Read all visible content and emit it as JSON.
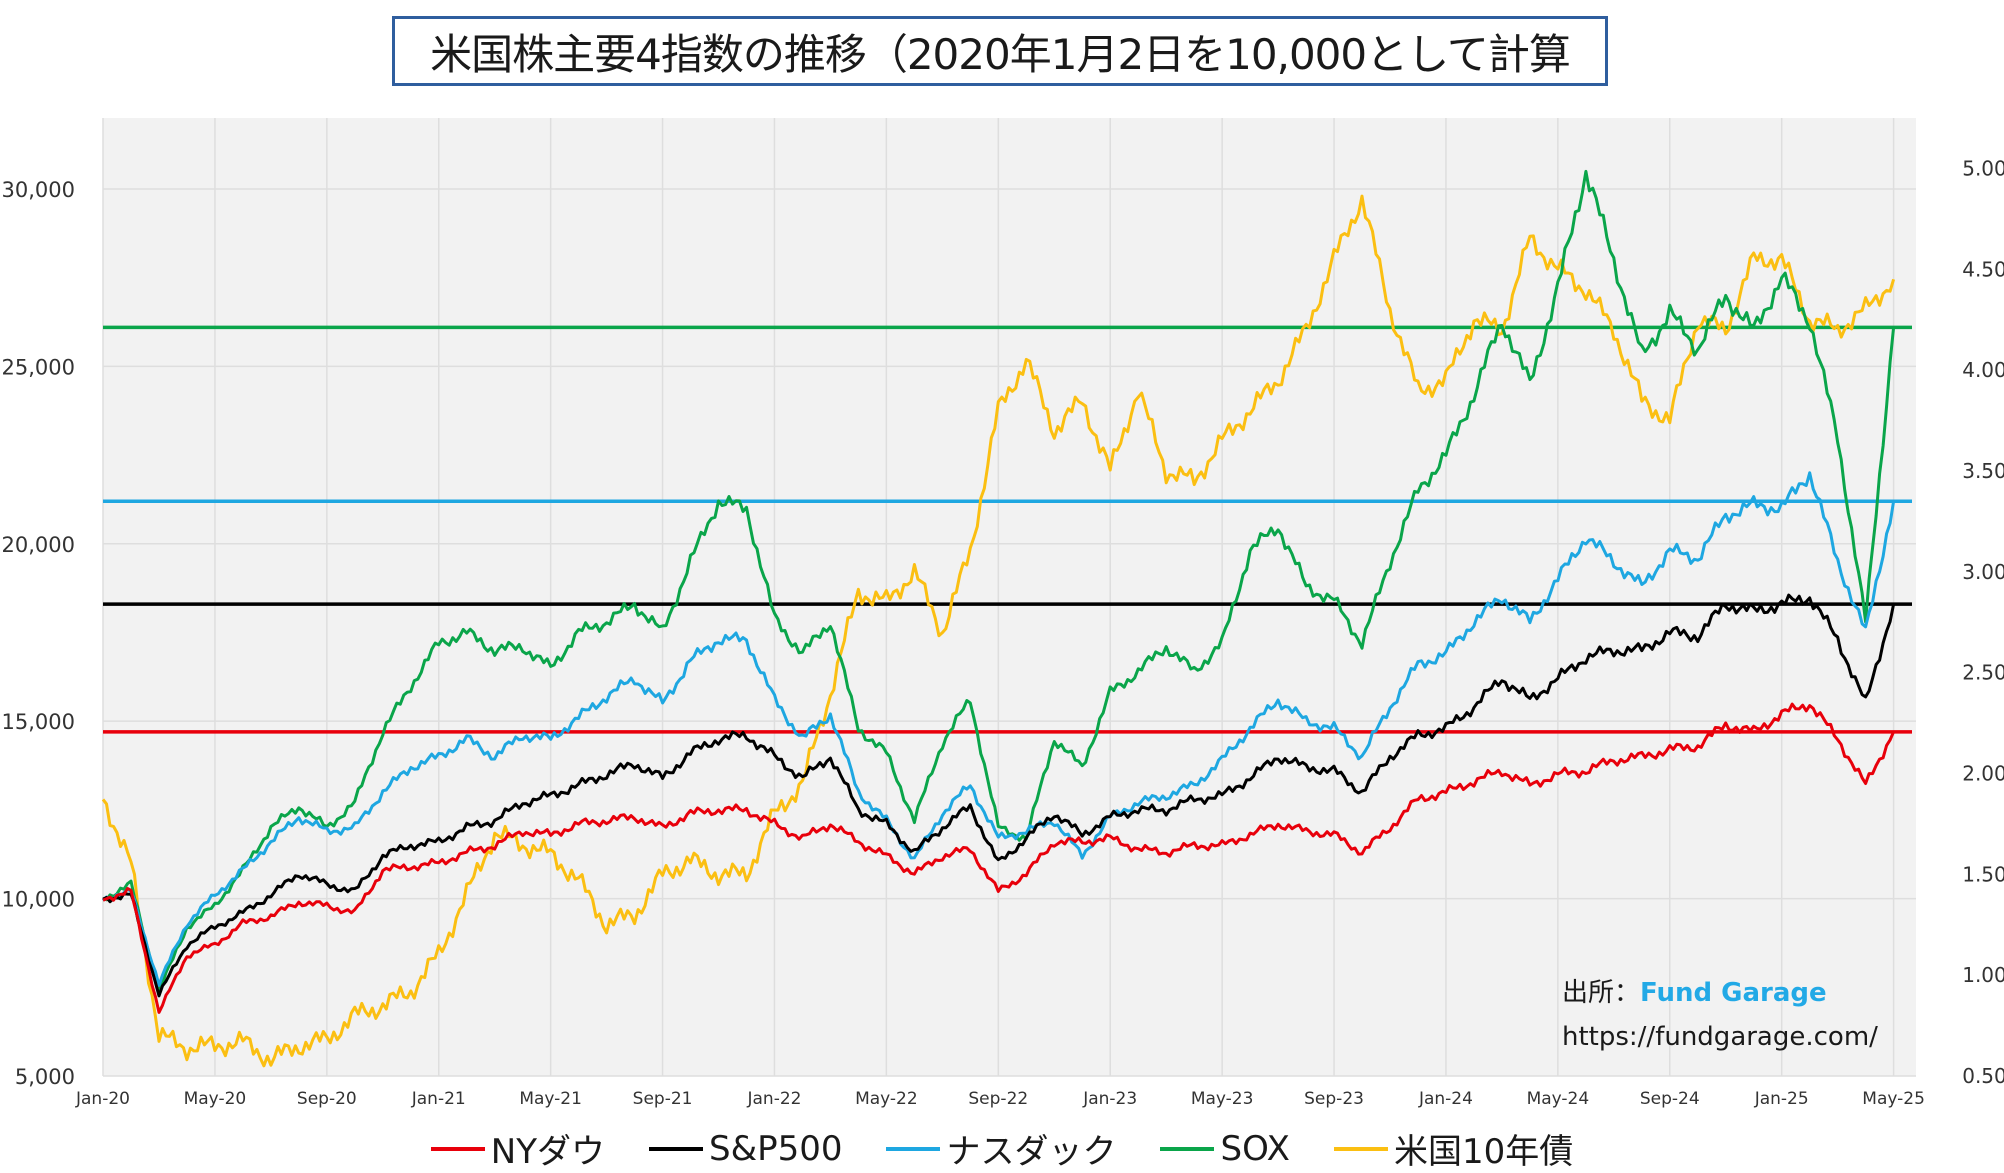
{
  "title": "米国株主要4指数の推移（2020年1月2日を10,000として計算",
  "source": {
    "prefix": "出所：",
    "brand": "Fund Garage",
    "url": "https://fundgarage.com/"
  },
  "colors": {
    "dow": "#e8000b",
    "sp500": "#000000",
    "nasdaq": "#1ea7e1",
    "sox": "#0aa54a",
    "bond": "#fbbf12",
    "grid": "#dedede",
    "plot_bg": "#f2f2f2"
  },
  "chart_data": {
    "type": "line",
    "title": "米国株主要4指数の推移（2020年1月2日を10,000として計算",
    "x_tick_labels": [
      "Jan-20",
      "May-20",
      "Sep-20",
      "Jan-21",
      "May-21",
      "Sep-21",
      "Jan-22",
      "May-22",
      "Sep-22",
      "Jan-23",
      "May-23",
      "Sep-23",
      "Jan-24",
      "May-24",
      "Sep-24",
      "Jan-25",
      "May-25"
    ],
    "x_range": [
      "2020-01",
      "2025-05"
    ],
    "ylim": [
      5000,
      32000
    ],
    "y_ticks": [
      "5,000",
      "10,000",
      "15,000",
      "20,000",
      "25,000",
      "30,000"
    ],
    "y2lim": [
      0.5,
      5.25
    ],
    "y2_ticks": [
      "0.50%",
      "1.00%",
      "1.50%",
      "2.00%",
      "2.50%",
      "3.00%",
      "3.50%",
      "4.00%",
      "4.50%",
      "5.00%"
    ],
    "x": [
      "2020-01",
      "2020-02",
      "2020-03",
      "2020-04",
      "2020-05",
      "2020-06",
      "2020-07",
      "2020-08",
      "2020-09",
      "2020-10",
      "2020-11",
      "2020-12",
      "2021-01",
      "2021-02",
      "2021-03",
      "2021-04",
      "2021-05",
      "2021-06",
      "2021-07",
      "2021-08",
      "2021-09",
      "2021-10",
      "2021-11",
      "2021-12",
      "2022-01",
      "2022-02",
      "2022-03",
      "2022-04",
      "2022-05",
      "2022-06",
      "2022-07",
      "2022-08",
      "2022-09",
      "2022-10",
      "2022-11",
      "2022-12",
      "2023-01",
      "2023-02",
      "2023-03",
      "2023-04",
      "2023-05",
      "2023-06",
      "2023-07",
      "2023-08",
      "2023-09",
      "2023-10",
      "2023-11",
      "2023-12",
      "2024-01",
      "2024-02",
      "2024-03",
      "2024-04",
      "2024-05",
      "2024-06",
      "2024-07",
      "2024-08",
      "2024-09",
      "2024-10",
      "2024-11",
      "2024-12",
      "2025-01",
      "2025-02",
      "2025-03",
      "2025-04",
      "2025-05"
    ],
    "series": [
      {
        "name": "NYダウ",
        "axis": "left",
        "color": "#e8000b",
        "values": [
          10000,
          10200,
          6800,
          8400,
          8700,
          9300,
          9500,
          9900,
          9800,
          9600,
          10800,
          10900,
          11000,
          11300,
          11500,
          11900,
          11800,
          12100,
          12200,
          12300,
          12000,
          12400,
          12500,
          12500,
          12100,
          11700,
          12100,
          11600,
          11200,
          10700,
          11200,
          11400,
          10200,
          10700,
          11600,
          11600,
          11700,
          11400,
          11300,
          11500,
          11500,
          11800,
          12100,
          11900,
          11800,
          11300,
          12000,
          12800,
          13000,
          13300,
          13600,
          13200,
          13500,
          13600,
          13900,
          14000,
          14200,
          14300,
          14900,
          14700,
          15200,
          15500,
          14500,
          13200,
          14700
        ]
      },
      {
        "name": "S&P500",
        "axis": "left",
        "color": "#000000",
        "values": [
          10000,
          10100,
          7300,
          8700,
          9200,
          9600,
          10100,
          10700,
          10400,
          10200,
          11200,
          11500,
          11600,
          12000,
          12200,
          12700,
          12900,
          13200,
          13500,
          13800,
          13400,
          14100,
          14500,
          14600,
          14000,
          13400,
          14000,
          12500,
          12100,
          11300,
          12000,
          12600,
          11000,
          11700,
          12400,
          11800,
          12300,
          12500,
          12500,
          12800,
          12900,
          13400,
          14000,
          13700,
          13600,
          13000,
          14000,
          14600,
          14800,
          15400,
          16200,
          15600,
          16200,
          16800,
          17000,
          17000,
          17500,
          17400,
          18300,
          18100,
          18300,
          18500,
          17300,
          15500,
          18300
        ]
      },
      {
        "name": "ナスダック",
        "axis": "left",
        "color": "#1ea7e1",
        "values": [
          10000,
          10200,
          7600,
          9300,
          10100,
          10800,
          11600,
          12300,
          11900,
          12000,
          13000,
          13700,
          14000,
          14500,
          14000,
          14600,
          14500,
          15100,
          15700,
          16200,
          15500,
          16700,
          17300,
          17300,
          15600,
          14500,
          15200,
          13000,
          12200,
          11100,
          12400,
          13200,
          11700,
          11900,
          12200,
          11200,
          12300,
          12700,
          12900,
          13200,
          13900,
          14800,
          15600,
          15000,
          14800,
          14000,
          15400,
          16600,
          16900,
          17800,
          18500,
          17800,
          19000,
          20200,
          19500,
          18800,
          19800,
          19600,
          20800,
          21100,
          21000,
          22000,
          19500,
          17500,
          21200
        ]
      },
      {
        "name": "SOX",
        "axis": "left",
        "color": "#0aa54a",
        "values": [
          10000,
          10400,
          7400,
          9200,
          9800,
          10800,
          12000,
          12600,
          12000,
          12700,
          14700,
          16000,
          17200,
          17500,
          17000,
          17100,
          16500,
          17500,
          17800,
          18300,
          17500,
          19500,
          21200,
          21000,
          17900,
          16900,
          17800,
          14800,
          14100,
          12200,
          14400,
          15600,
          12000,
          11700,
          14500,
          13700,
          15800,
          16400,
          17100,
          16400,
          17200,
          19800,
          20500,
          18800,
          18400,
          17200,
          19500,
          21500,
          22500,
          24200,
          26300,
          24500,
          27200,
          30500,
          28000,
          25300,
          26500,
          25500,
          27000,
          26000,
          27500,
          26300,
          23000,
          17800,
          26100
        ]
      },
      {
        "name": "米国10年債",
        "axis": "right",
        "color": "#fbbf12",
        "values": [
          1.88,
          1.55,
          0.7,
          0.64,
          0.65,
          0.67,
          0.58,
          0.65,
          0.68,
          0.8,
          0.85,
          0.92,
          1.1,
          1.4,
          1.7,
          1.65,
          1.6,
          1.47,
          1.25,
          1.3,
          1.5,
          1.57,
          1.5,
          1.5,
          1.8,
          1.95,
          2.4,
          2.9,
          2.85,
          3.0,
          2.7,
          3.1,
          3.8,
          4.05,
          3.7,
          3.85,
          3.5,
          3.9,
          3.5,
          3.45,
          3.65,
          3.8,
          3.95,
          4.2,
          4.55,
          4.85,
          4.3,
          3.9,
          3.95,
          4.25,
          4.2,
          4.65,
          4.5,
          4.4,
          4.2,
          3.85,
          3.75,
          4.25,
          4.2,
          4.55,
          4.55,
          4.25,
          4.2,
          4.3,
          4.45
        ]
      }
    ],
    "reference_lines": [
      {
        "series": "NYダウ",
        "value": 14700
      },
      {
        "series": "S&P500",
        "value": 18300
      },
      {
        "series": "ナスダック",
        "value": 21200
      },
      {
        "series": "SOX",
        "value": 26100
      }
    ],
    "legend": [
      "NYダウ",
      "S&P500",
      "ナスダック",
      "SOX",
      "米国10年債"
    ],
    "legend_position": "bottom",
    "grid": true
  }
}
